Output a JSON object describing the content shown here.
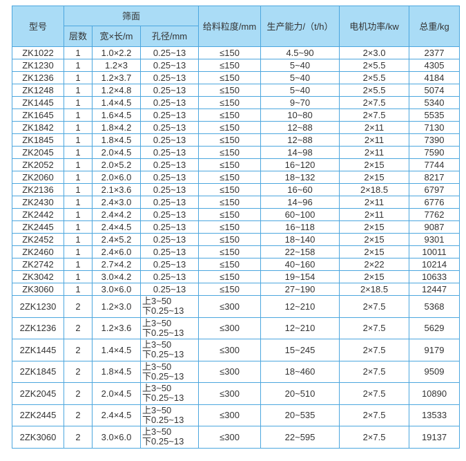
{
  "header": {
    "model": "型号",
    "screen": "筛面",
    "layers": "层数",
    "size": "宽×长/m",
    "aperture": "孔径/mm",
    "feed": "给料粒度/mm",
    "capacity": "生产能力/（t/h）",
    "power": "电机功率/kw",
    "weight": "总重/kg"
  },
  "rows": [
    {
      "model": "ZK1022",
      "layers": "1",
      "size": "1.0×2.2",
      "aperture": "0.25~13",
      "feed": "≤150",
      "capacity": "4.5~90",
      "power": "2×3.0",
      "weight": "2377"
    },
    {
      "model": "ZK1230",
      "layers": "1",
      "size": "1.2×3",
      "aperture": "0.25~13",
      "feed": "≤150",
      "capacity": "5~40",
      "power": "2×5.5",
      "weight": "4305"
    },
    {
      "model": "ZK1236",
      "layers": "1",
      "size": "1.2×3.7",
      "aperture": "0.25~13",
      "feed": "≤150",
      "capacity": "5~40",
      "power": "2×5.5",
      "weight": "4184"
    },
    {
      "model": "ZK1248",
      "layers": "1",
      "size": "1.2×4.8",
      "aperture": "0.25~13",
      "feed": "≤150",
      "capacity": "5~40",
      "power": "2×5.5",
      "weight": "5074"
    },
    {
      "model": "ZK1445",
      "layers": "1",
      "size": "1.4×4.5",
      "aperture": "0.25~13",
      "feed": "≤150",
      "capacity": "9~70",
      "power": "2×7.5",
      "weight": "5340"
    },
    {
      "model": "ZK1645",
      "layers": "1",
      "size": "1.6×4.5",
      "aperture": "0.25~13",
      "feed": "≤150",
      "capacity": "10~80",
      "power": "2×7.5",
      "weight": "5535"
    },
    {
      "model": "ZK1842",
      "layers": "1",
      "size": "1.8×4.2",
      "aperture": "0.25~13",
      "feed": "≤150",
      "capacity": "12~88",
      "power": "2×11",
      "weight": "7130"
    },
    {
      "model": "ZK1845",
      "layers": "1",
      "size": "1.8×4.5",
      "aperture": "0.25~13",
      "feed": "≤150",
      "capacity": "12~88",
      "power": "2×11",
      "weight": "7390"
    },
    {
      "model": "ZK2045",
      "layers": "1",
      "size": "2.0×4.5",
      "aperture": "0.25~13",
      "feed": "≤150",
      "capacity": "14~98",
      "power": "2×11",
      "weight": "7590"
    },
    {
      "model": "ZK2052",
      "layers": "1",
      "size": "2.0×5.2",
      "aperture": "0.25~13",
      "feed": "≤150",
      "capacity": "16~120",
      "power": "2×15",
      "weight": "7744"
    },
    {
      "model": "ZK2060",
      "layers": "1",
      "size": "2.0×6.0",
      "aperture": "0.25~13",
      "feed": "≤150",
      "capacity": "18~132",
      "power": "2×15",
      "weight": "8217"
    },
    {
      "model": "ZK2136",
      "layers": "1",
      "size": "2.1×3.6",
      "aperture": "0.25~13",
      "feed": "≤150",
      "capacity": "16~60",
      "power": "2×18.5",
      "weight": "6797"
    },
    {
      "model": "ZK2430",
      "layers": "1",
      "size": "2.4×3.0",
      "aperture": "0.25~13",
      "feed": "≤150",
      "capacity": "14~96",
      "power": "2×11",
      "weight": "6776"
    },
    {
      "model": "ZK2442",
      "layers": "1",
      "size": "2.4×4.2",
      "aperture": "0.25~13",
      "feed": "≤150",
      "capacity": "60~100",
      "power": "2×11",
      "weight": "7762"
    },
    {
      "model": "ZK2445",
      "layers": "1",
      "size": "2.4×4.5",
      "aperture": "0.25~13",
      "feed": "≤150",
      "capacity": "16~118",
      "power": "2×15",
      "weight": "9087"
    },
    {
      "model": "ZK2452",
      "layers": "1",
      "size": "2.4×5.2",
      "aperture": "0.25~13",
      "feed": "≤150",
      "capacity": "18~140",
      "power": "2×15",
      "weight": "9301"
    },
    {
      "model": "ZK2460",
      "layers": "1",
      "size": "2.4×6.0",
      "aperture": "0.25~13",
      "feed": "≤150",
      "capacity": "22~158",
      "power": "2×15",
      "weight": "10011"
    },
    {
      "model": "ZK2742",
      "layers": "1",
      "size": "2.7×4.2",
      "aperture": "0.25~13",
      "feed": "≤150",
      "capacity": "40~160",
      "power": "2×22",
      "weight": "10214"
    },
    {
      "model": "ZK3042",
      "layers": "1",
      "size": "3.0×4.2",
      "aperture": "0.25~13",
      "feed": "≤150",
      "capacity": "19~154",
      "power": "2×15",
      "weight": "10633"
    },
    {
      "model": "ZK3060",
      "layers": "1",
      "size": "3.0×6.0",
      "aperture": "0.25~13",
      "feed": "≤150",
      "capacity": "27~190",
      "power": "2×18.5",
      "weight": "12447"
    }
  ],
  "double_rows": [
    {
      "model": "2ZK1230",
      "layers": "2",
      "size": "1.2×3.0",
      "aperture_top": "上3~50",
      "aperture_bottom": "下0.25~13",
      "feed": "≤300",
      "capacity": "12~210",
      "power": "2×7.5",
      "weight": "5368"
    },
    {
      "model": "2ZK1236",
      "layers": "2",
      "size": "1.2×3.6",
      "aperture_top": "上3~50",
      "aperture_bottom": "下0.25~13",
      "feed": "≤300",
      "capacity": "12~210",
      "power": "2×7.5",
      "weight": "5629"
    },
    {
      "model": "2ZK1445",
      "layers": "2",
      "size": "1.4×4.5",
      "aperture_top": "上3~50",
      "aperture_bottom": "下0.25~13",
      "feed": "≤300",
      "capacity": "15~245",
      "power": "2×7.5",
      "weight": "9179"
    },
    {
      "model": "2ZK1845",
      "layers": "2",
      "size": "1.8×4.5",
      "aperture_top": "上3~50",
      "aperture_bottom": "下0.25~13",
      "feed": "≤300",
      "capacity": "18~460",
      "power": "2×7.5",
      "weight": "9509"
    },
    {
      "model": "2ZK2045",
      "layers": "2",
      "size": "2.0×4.5",
      "aperture_top": "上3~50",
      "aperture_bottom": "下0.25~13",
      "feed": "≤300",
      "capacity": "20~510",
      "power": "2×7.5",
      "weight": "10890"
    },
    {
      "model": "2ZK2445",
      "layers": "2",
      "size": "2.4×4.5",
      "aperture_top": "上3~50",
      "aperture_bottom": "下0.25~13",
      "feed": "≤300",
      "capacity": "20~535",
      "power": "2×7.5",
      "weight": "13533"
    },
    {
      "model": "2ZK3060",
      "layers": "2",
      "size": "3.0×6.0",
      "aperture_top": "上3~50",
      "aperture_bottom": "下0.25~13",
      "feed": "≤300",
      "capacity": "22~595",
      "power": "2×7.5",
      "weight": "19137"
    }
  ],
  "colors": {
    "header_bg": "#aadcf6",
    "border": "#4ba6de",
    "text": "#333333"
  }
}
